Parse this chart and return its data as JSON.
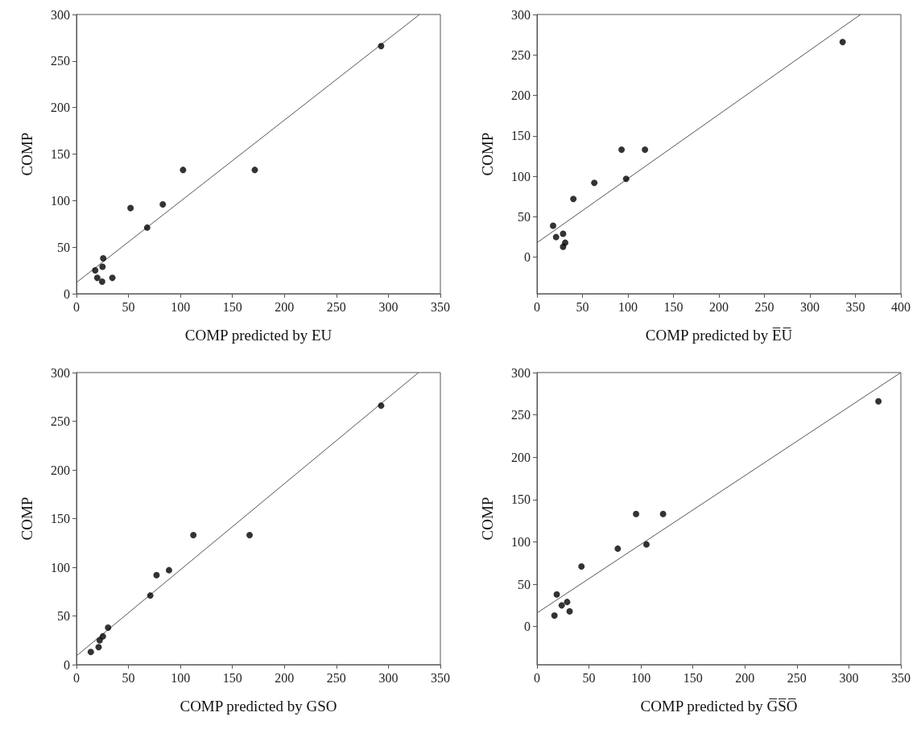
{
  "chart_data": [
    {
      "type": "scatter",
      "xlabel": "COMP predicted by EU",
      "ylabel": "COMP",
      "xlim": [
        0,
        350
      ],
      "ylim": [
        0,
        300
      ],
      "xticks": [
        0,
        50,
        100,
        150,
        200,
        250,
        300,
        350
      ],
      "yticks": [
        0,
        50,
        100,
        150,
        200,
        250,
        300
      ],
      "series": [
        {
          "color": "#000000",
          "marker": "circle",
          "x": [
            293,
            102.5,
            171.5,
            83,
            52,
            68,
            25.7,
            25,
            18,
            20,
            34.5,
            24.7
          ],
          "values": [
            266,
            133,
            133,
            96,
            92,
            71,
            38,
            29,
            25,
            17,
            17,
            13
          ]
        },
        {
          "type": "line",
          "color": "#555555",
          "marker": "none",
          "x": [
            0,
            330
          ],
          "values": [
            12,
            300
          ]
        }
      ]
    },
    {
      "type": "scatter",
      "xlabel": "COMP predicted by E̅U̅",
      "ylabel": "COMP",
      "xlim": [
        0,
        400
      ],
      "ylim": [
        -45,
        300
      ],
      "xticks": [
        0,
        50,
        100,
        150,
        200,
        250,
        300,
        350,
        400
      ],
      "yticks": [
        0,
        50,
        100,
        150,
        200,
        250,
        300
      ],
      "series": [
        {
          "color": "#000000",
          "marker": "circle",
          "x": [
            336,
            93,
            118.7,
            98,
            63,
            40,
            17.7,
            21,
            28.7,
            31,
            28.7
          ],
          "values": [
            266,
            133,
            133,
            97,
            92,
            72,
            39,
            25,
            29,
            18,
            13
          ]
        },
        {
          "type": "line",
          "color": "#555555",
          "marker": "none",
          "x": [
            0,
            355.7
          ],
          "values": [
            18,
            300
          ]
        }
      ]
    },
    {
      "type": "scatter",
      "xlabel": "COMP predicted by GSO",
      "ylabel": "COMP",
      "xlim": [
        0,
        350
      ],
      "ylim": [
        0,
        300
      ],
      "xticks": [
        0,
        50,
        100,
        150,
        200,
        250,
        300,
        350
      ],
      "yticks": [
        0,
        50,
        100,
        150,
        200,
        250,
        300
      ],
      "series": [
        {
          "color": "#000000",
          "marker": "circle",
          "x": [
            293,
            112.4,
            166.5,
            89,
            77,
            71,
            30.4,
            25.4,
            22.3,
            21.3,
            13.8
          ],
          "values": [
            266,
            133,
            133,
            97,
            92,
            71,
            38,
            29,
            25,
            18,
            13
          ]
        },
        {
          "type": "line",
          "color": "#555555",
          "marker": "none",
          "x": [
            0,
            329
          ],
          "values": [
            9,
            300
          ]
        }
      ]
    },
    {
      "type": "scatter",
      "xlabel": "COMP predicted by G̅S̅O̅",
      "ylabel": "COMP",
      "xlim": [
        0,
        350
      ],
      "ylim": [
        -45,
        300
      ],
      "xticks": [
        0,
        50,
        100,
        150,
        200,
        250,
        300,
        350
      ],
      "yticks": [
        0,
        50,
        100,
        150,
        200,
        250,
        300
      ],
      "series": [
        {
          "color": "#000000",
          "marker": "circle",
          "x": [
            328.4,
            95.3,
            121.3,
            105.3,
            77.7,
            42.8,
            19,
            23.8,
            29,
            31.4,
            16.8
          ],
          "values": [
            266,
            133,
            133,
            97,
            92,
            71,
            38,
            25,
            29,
            18,
            13
          ]
        },
        {
          "type": "line",
          "color": "#555555",
          "marker": "none",
          "x": [
            0,
            350
          ],
          "values": [
            16,
            300
          ]
        }
      ]
    }
  ]
}
